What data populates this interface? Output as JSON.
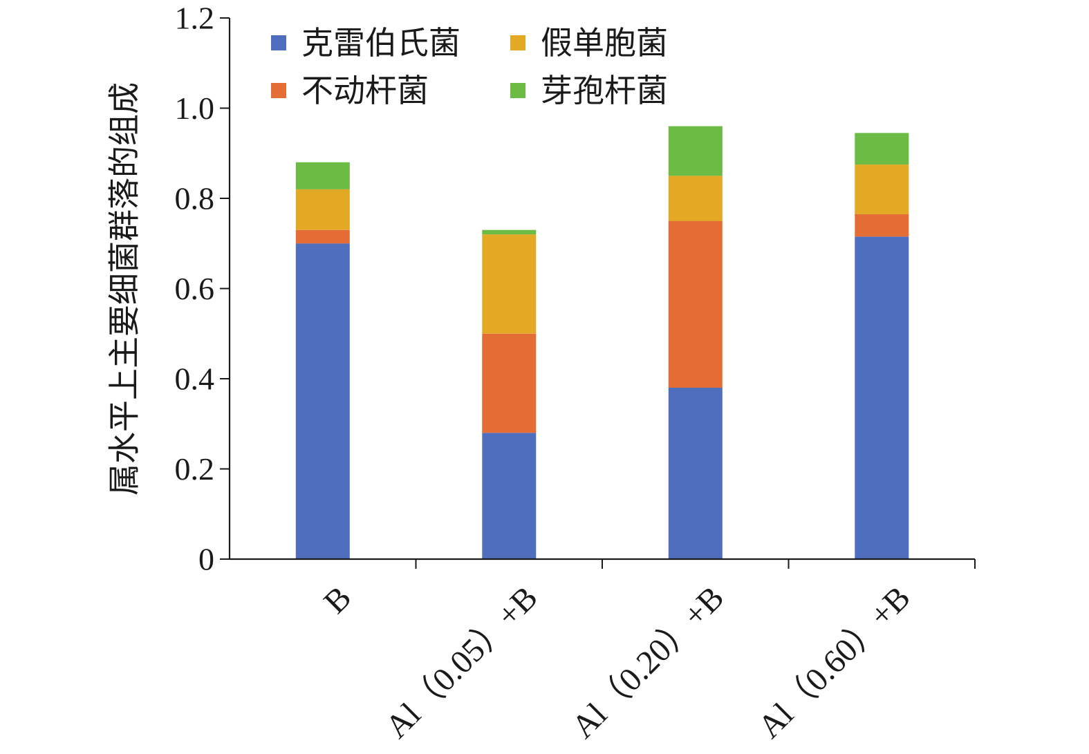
{
  "chart_data": {
    "type": "bar",
    "stacked": true,
    "title": "",
    "xlabel": "",
    "ylabel": "属水平上主要细菌群落的组成",
    "ylim": [
      0,
      1.2
    ],
    "yticks": [
      0,
      0.2,
      0.4,
      0.6,
      0.8,
      1.0,
      1.2
    ],
    "ytick_labels": [
      "0",
      "0.2",
      "0.4",
      "0.6",
      "0.8",
      "1.0",
      "1.2"
    ],
    "categories": [
      "B",
      "Al（0.05）+B",
      "Al（0.20）+B",
      "Al（0.60）+B"
    ],
    "series": [
      {
        "name": "克雷伯氏菌",
        "color": "#4f6fbe",
        "values": [
          0.7,
          0.28,
          0.38,
          0.715
        ]
      },
      {
        "name": "不动杆菌",
        "color": "#e46d35",
        "values": [
          0.03,
          0.22,
          0.37,
          0.05
        ]
      },
      {
        "name": "假单胞菌",
        "color": "#e3a824",
        "values": [
          0.09,
          0.22,
          0.1,
          0.11
        ]
      },
      {
        "name": "芽孢杆菌",
        "color": "#6cbb45",
        "values": [
          0.06,
          0.01,
          0.11,
          0.07
        ]
      }
    ],
    "legend": {
      "placement": "top-inside",
      "order": [
        "克雷伯氏菌",
        "假单胞菌",
        "不动杆菌",
        "芽孢杆菌"
      ]
    },
    "grid": false
  }
}
